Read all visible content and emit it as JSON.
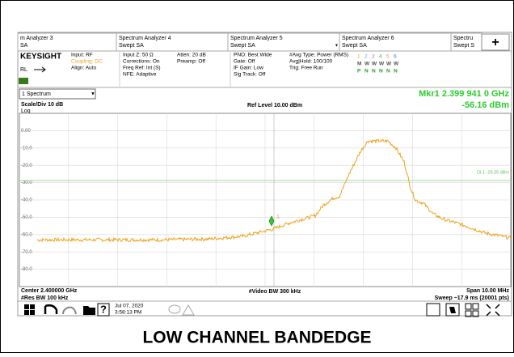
{
  "tabs": [
    {
      "title": "m Analyzer 3",
      "subtitle": "SA"
    },
    {
      "title": "Spectrum Analyzer 4",
      "subtitle": "Swept SA"
    },
    {
      "title": "Spectrum Analyzer 5",
      "subtitle": "Swept SA"
    },
    {
      "title": "Spectrum Analyzer 6",
      "subtitle": "Swept SA"
    },
    {
      "title": "Spectru",
      "subtitle": "Swept S"
    }
  ],
  "add_tab": "+",
  "brand": "KEYSIGHT",
  "rl": "RL",
  "info": [
    [
      "Input: RF",
      "Coupling: DC",
      "Align: Auto"
    ],
    [
      "Input Z: 50 Ω",
      "Corrections: On",
      "Freq Ref: Int (S)",
      "NFE: Adaptive"
    ],
    [
      "Atten: 20 dB",
      "Preamp: Off"
    ],
    [
      "PNO: Best Wide",
      "Gate: Off",
      "IF Gain: Low",
      "Sig Track: Off"
    ],
    [
      "#Avg Type: Power (RMS)",
      "Avg|Hold: 100/100",
      "Trig: Free Run"
    ]
  ],
  "trace_rows": [
    [
      "1",
      "2",
      "3",
      "4",
      "5",
      "6"
    ],
    [
      "M",
      "W",
      "W",
      "W",
      "W",
      "W"
    ],
    [
      "P",
      "N",
      "N",
      "N",
      "N",
      "N"
    ]
  ],
  "window": "1 Spectrum",
  "marker_freq": "Mkr1  2.399 941 0 GHz",
  "marker_level": "-56.16 dBm",
  "scale": "Scale/Div 10 dB",
  "ref_level": "Ref Level 10.00 dBm",
  "log": "Log",
  "yticks": [
    "0.00",
    "-10.0",
    "-20.0",
    "-30.0",
    "-40.0",
    "-50.0",
    "-60.0",
    "-70.0",
    "-80.0"
  ],
  "display_line": "DL1 -29.35 dBm",
  "marker_tag": "1",
  "footer": {
    "center": "Center 2.400000 GHz",
    "res_bw": "#Res BW 100 kHz",
    "video_bw": "#Video BW 300 kHz",
    "span": "Span 10.00 MHz",
    "sweep": "Sweep ~17.9 ms (20001 pts)"
  },
  "taskbar": {
    "date": "Jul 07, 2020",
    "time": "3:58:13 PM"
  },
  "caption": "LOW CHANNEL BANDEDGE"
}
